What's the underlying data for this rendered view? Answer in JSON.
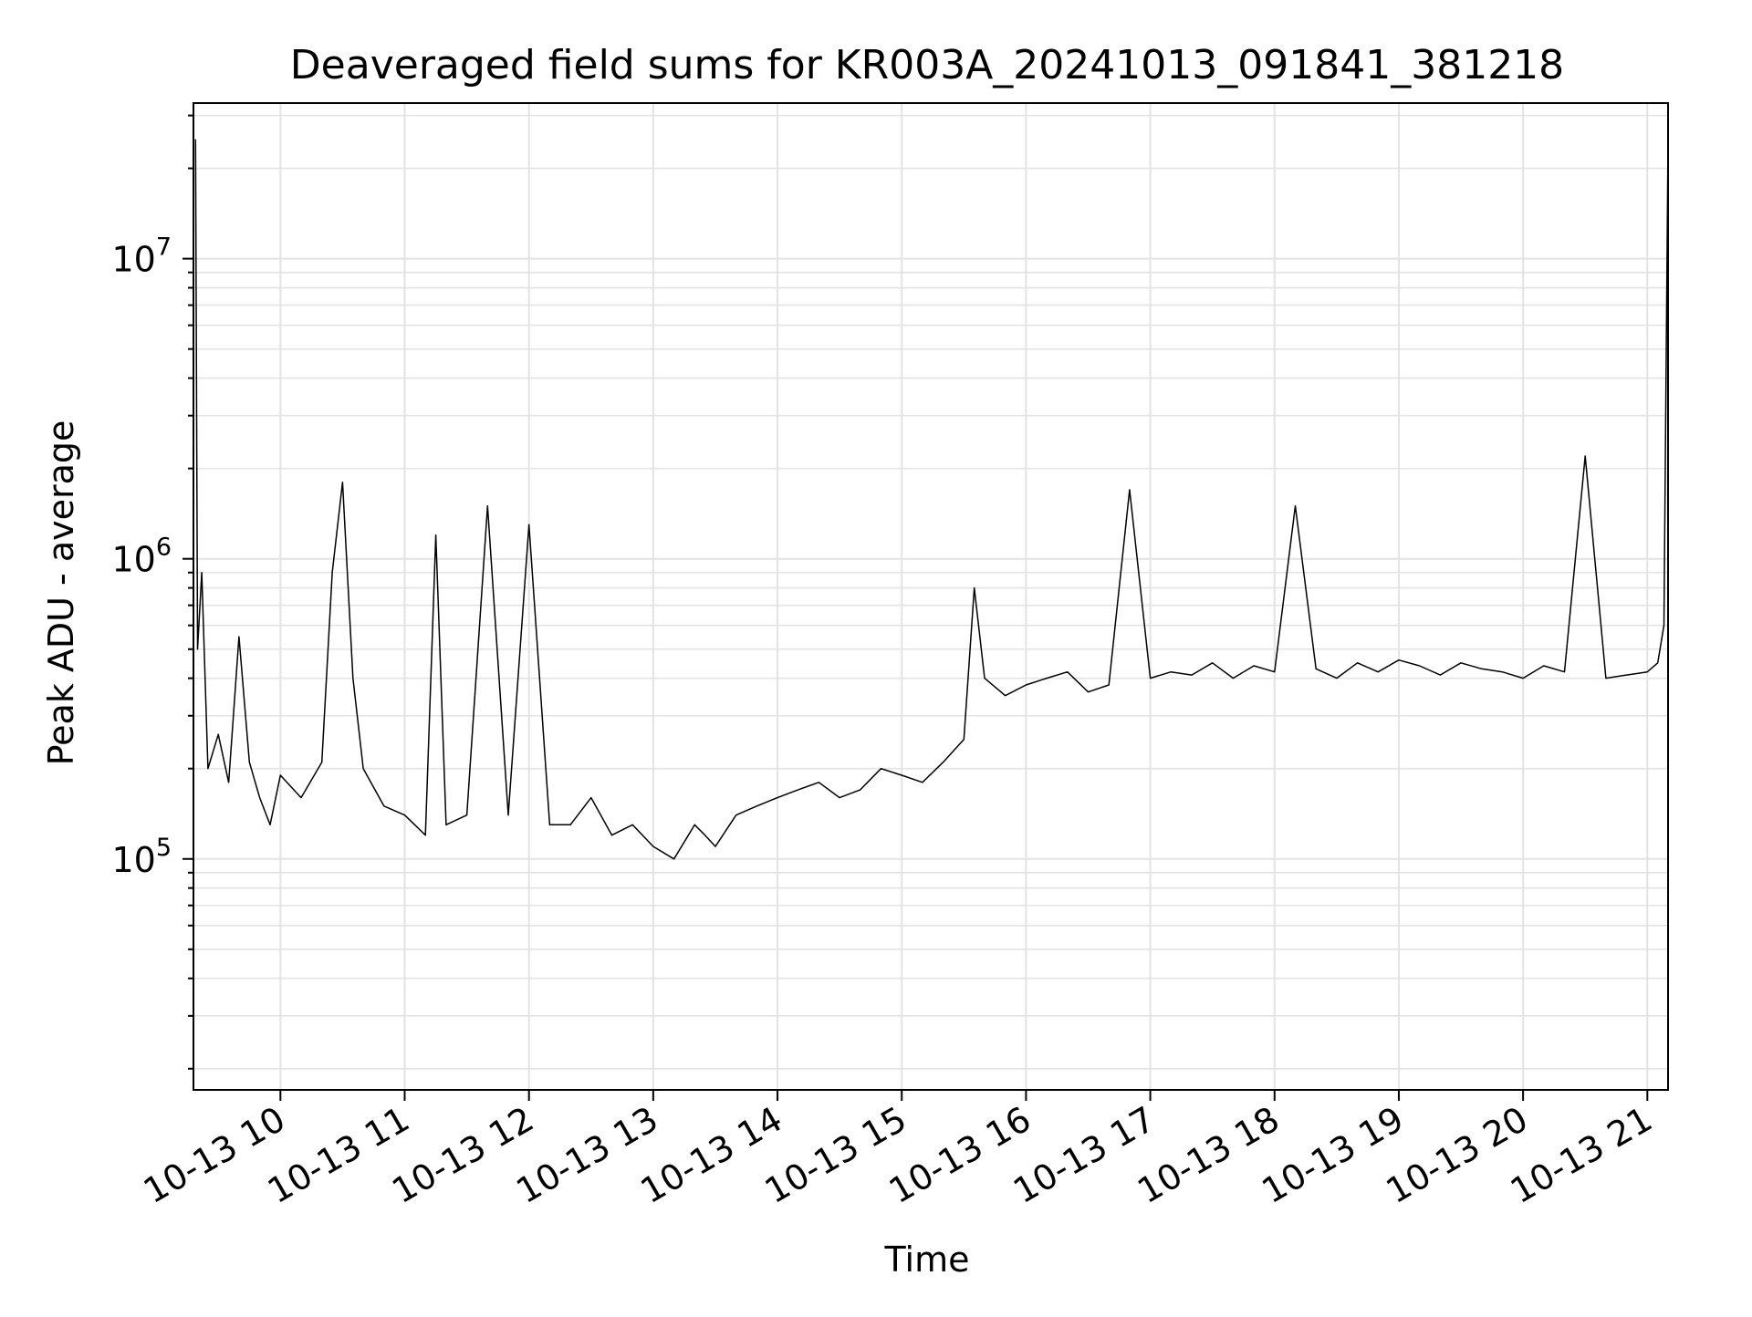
{
  "chart_data": {
    "type": "line",
    "title": "Deaveraged field sums for KR003A_20241013_091841_381218",
    "xlabel": "Time",
    "ylabel": "Peak ADU - average",
    "yscale": "log",
    "ylim": [
      17000,
      33000000
    ],
    "xlim": [
      "2024-10-13 09:18",
      "2024-10-13 21:10"
    ],
    "grid": true,
    "x_ticks": [
      "10-13 10",
      "10-13 11",
      "10-13 12",
      "10-13 13",
      "10-13 14",
      "10-13 15",
      "10-13 16",
      "10-13 17",
      "10-13 18",
      "10-13 19",
      "10-13 20",
      "10-13 21"
    ],
    "y_ticks": [
      {
        "base": "10",
        "exp": "5",
        "value": 100000
      },
      {
        "base": "10",
        "exp": "6",
        "value": 1000000
      },
      {
        "base": "10",
        "exp": "7",
        "value": 10000000
      }
    ],
    "series": [
      {
        "color": "#000000",
        "x": [
          "2024-10-13 09:19",
          "2024-10-13 09:20",
          "2024-10-13 09:22",
          "2024-10-13 09:25",
          "2024-10-13 09:30",
          "2024-10-13 09:35",
          "2024-10-13 09:40",
          "2024-10-13 09:45",
          "2024-10-13 09:50",
          "2024-10-13 09:55",
          "2024-10-13 10:00",
          "2024-10-13 10:10",
          "2024-10-13 10:20",
          "2024-10-13 10:25",
          "2024-10-13 10:30",
          "2024-10-13 10:35",
          "2024-10-13 10:40",
          "2024-10-13 10:50",
          "2024-10-13 11:00",
          "2024-10-13 11:10",
          "2024-10-13 11:15",
          "2024-10-13 11:20",
          "2024-10-13 11:30",
          "2024-10-13 11:40",
          "2024-10-13 11:50",
          "2024-10-13 12:00",
          "2024-10-13 12:10",
          "2024-10-13 12:20",
          "2024-10-13 12:30",
          "2024-10-13 12:40",
          "2024-10-13 12:50",
          "2024-10-13 13:00",
          "2024-10-13 13:10",
          "2024-10-13 13:20",
          "2024-10-13 13:25",
          "2024-10-13 13:30",
          "2024-10-13 13:40",
          "2024-10-13 13:50",
          "2024-10-13 14:00",
          "2024-10-13 14:10",
          "2024-10-13 14:20",
          "2024-10-13 14:30",
          "2024-10-13 14:40",
          "2024-10-13 14:50",
          "2024-10-13 15:00",
          "2024-10-13 15:10",
          "2024-10-13 15:20",
          "2024-10-13 15:30",
          "2024-10-13 15:35",
          "2024-10-13 15:40",
          "2024-10-13 15:50",
          "2024-10-13 16:00",
          "2024-10-13 16:10",
          "2024-10-13 16:20",
          "2024-10-13 16:30",
          "2024-10-13 16:40",
          "2024-10-13 16:50",
          "2024-10-13 17:00",
          "2024-10-13 17:10",
          "2024-10-13 17:20",
          "2024-10-13 17:30",
          "2024-10-13 17:40",
          "2024-10-13 17:50",
          "2024-10-13 18:00",
          "2024-10-13 18:10",
          "2024-10-13 18:20",
          "2024-10-13 18:30",
          "2024-10-13 18:40",
          "2024-10-13 18:50",
          "2024-10-13 19:00",
          "2024-10-13 19:10",
          "2024-10-13 19:20",
          "2024-10-13 19:30",
          "2024-10-13 19:40",
          "2024-10-13 19:50",
          "2024-10-13 20:00",
          "2024-10-13 20:10",
          "2024-10-13 20:20",
          "2024-10-13 20:30",
          "2024-10-13 20:40",
          "2024-10-13 20:50",
          "2024-10-13 21:00",
          "2024-10-13 21:05",
          "2024-10-13 21:08",
          "2024-10-13 21:10"
        ],
        "y": [
          25000000,
          500000,
          900000,
          200000,
          260000,
          180000,
          550000,
          210000,
          160000,
          130000,
          190000,
          160000,
          210000,
          900000,
          1800000,
          400000,
          200000,
          150000,
          140000,
          120000,
          1200000,
          130000,
          140000,
          1500000,
          140000,
          1300000,
          130000,
          130000,
          160000,
          120000,
          130000,
          110000,
          100000,
          130000,
          120000,
          110000,
          140000,
          150000,
          160000,
          170000,
          180000,
          160000,
          170000,
          200000,
          190000,
          180000,
          210000,
          250000,
          800000,
          400000,
          350000,
          380000,
          400000,
          420000,
          360000,
          380000,
          1700000,
          400000,
          420000,
          410000,
          450000,
          400000,
          440000,
          420000,
          1500000,
          430000,
          400000,
          450000,
          420000,
          460000,
          440000,
          410000,
          450000,
          430000,
          420000,
          400000,
          440000,
          420000,
          2200000,
          400000,
          410000,
          420000,
          450000,
          600000,
          25000000
        ]
      }
    ],
    "annotations": [
      "spike at start ~2.5e7",
      "spike at end ~2.5e7",
      "level shift around 15:35 from ~1.5e5 to ~4e5"
    ]
  }
}
